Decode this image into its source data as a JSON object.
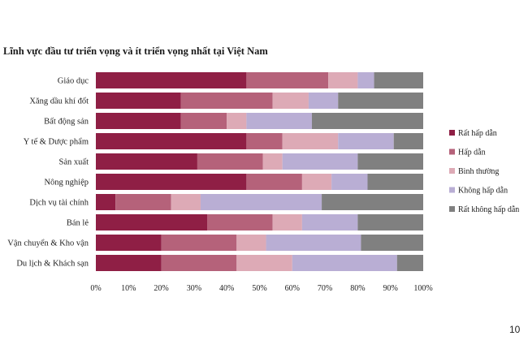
{
  "chart_data": {
    "type": "bar",
    "orientation": "horizontal",
    "stacked": "100%",
    "title": "Lĩnh vực đầu tư triển vọng và ít triển vọng nhất tại Việt Nam",
    "categories": [
      "Giáo dục",
      "Xăng dầu khí đốt",
      "Bất động sản",
      "Y tế & Dược phẩm",
      "Sản xuất",
      "Nông nghiệp",
      "Dịch vụ tài chính",
      "Bán lẻ",
      "Vận chuyển & Kho vận",
      "Du lịch & Khách sạn"
    ],
    "series": [
      {
        "name": "Rất hấp dẫn",
        "color": "#8f1f45",
        "values": [
          46,
          26,
          26,
          46,
          31,
          46,
          6,
          34,
          20,
          20
        ]
      },
      {
        "name": "Hấp dẫn",
        "color": "#b5627a",
        "values": [
          25,
          28,
          14,
          11,
          20,
          17,
          17,
          20,
          23,
          23
        ]
      },
      {
        "name": "Bình thường",
        "color": "#ddaab6",
        "values": [
          9,
          11,
          6,
          17,
          6,
          9,
          9,
          9,
          9,
          17
        ]
      },
      {
        "name": "Không hấp dẫn",
        "color": "#b9aed4",
        "values": [
          5,
          9,
          20,
          17,
          23,
          11,
          37,
          17,
          29,
          32
        ]
      },
      {
        "name": "Rất không hấp dẫn",
        "color": "#808080",
        "values": [
          15,
          26,
          34,
          9,
          20,
          17,
          31,
          20,
          19,
          8
        ]
      }
    ],
    "xticks": [
      "0%",
      "10%",
      "20%",
      "30%",
      "40%",
      "50%",
      "60%",
      "70%",
      "80%",
      "90%",
      "100%"
    ],
    "xlim": [
      0,
      100
    ],
    "grid": false,
    "legend_position": "right"
  },
  "page_number": "10"
}
